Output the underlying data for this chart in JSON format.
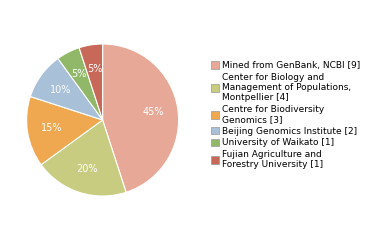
{
  "legend_labels": [
    "Mined from GenBank, NCBI [9]",
    "Center for Biology and\nManagement of Populations,\nMontpellier [4]",
    "Centre for Biodiversity\nGenomics [3]",
    "Beijing Genomics Institute [2]",
    "University of Waikato [1]",
    "Fujian Agriculture and\nForestry University [1]"
  ],
  "values": [
    45,
    20,
    15,
    10,
    5,
    5
  ],
  "colors": [
    "#e8a898",
    "#c8cc80",
    "#f0a850",
    "#a8c0d8",
    "#90b868",
    "#c86858"
  ],
  "startangle": 90,
  "background_color": "#ffffff",
  "pct_fontsize": 7,
  "legend_fontsize": 6.5
}
